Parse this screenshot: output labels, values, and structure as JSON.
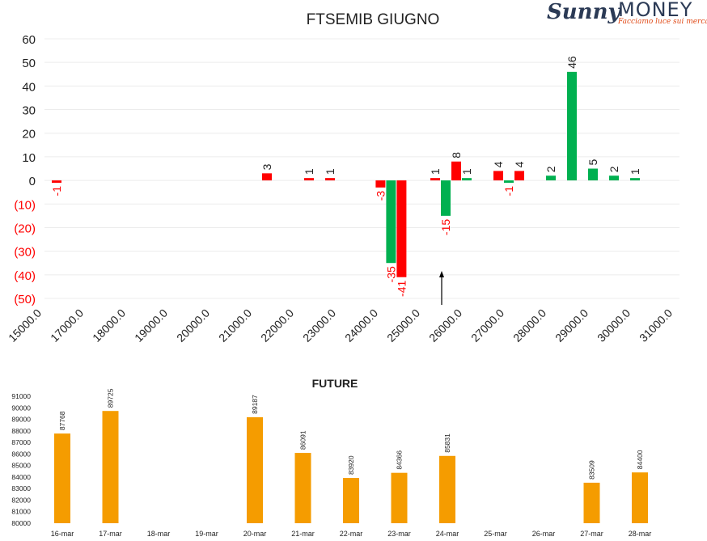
{
  "logo": {
    "brand_left": "Sunny",
    "brand_right": "MONEY",
    "tagline": "Facciamo luce sui mercati"
  },
  "colors": {
    "green": "#00b050",
    "red": "#ff0000",
    "orange": "#f59c00",
    "text": "#222222",
    "negtext": "#ff0000"
  },
  "chart_data": [
    {
      "type": "bar",
      "title": "FTSEMIB GIUGNO",
      "categories": [
        "15000.0",
        "17000.0",
        "18000.0",
        "19000.0",
        "20000.0",
        "21000.0",
        "22000.0",
        "23000.0",
        "24000.0",
        "25000.0",
        "26000.0",
        "27000.0",
        "28000.0",
        "29000.0",
        "30000.0",
        "31000.0"
      ],
      "ytick_labels": [
        "60",
        "50",
        "40",
        "30",
        "20",
        "10",
        "0",
        "(10)",
        "(20)",
        "(30)",
        "(40)",
        "(50)"
      ],
      "ytick_values": [
        60,
        50,
        40,
        30,
        20,
        10,
        0,
        -10,
        -20,
        -30,
        -40,
        -50
      ],
      "ylim": [
        -50,
        60
      ],
      "grid": true,
      "legend": "none",
      "annotation": "arrow pointing up near 25000-26000",
      "bars": [
        {
          "x": 15000,
          "value": -1,
          "color": "red",
          "label": "-1"
        },
        {
          "x": 20000,
          "value": 3,
          "color": "red",
          "label": "3"
        },
        {
          "x": 21000,
          "value": 1,
          "color": "red",
          "label": "1"
        },
        {
          "x": 21500,
          "value": 1,
          "color": "red",
          "label": "1"
        },
        {
          "x": 22700,
          "value": -3,
          "color": "red",
          "label": "-3"
        },
        {
          "x": 22950,
          "value": -35,
          "color": "green",
          "label": "-35"
        },
        {
          "x": 23200,
          "value": -41,
          "color": "red",
          "label": "-41"
        },
        {
          "x": 24000,
          "value": 1,
          "color": "red",
          "label": "1"
        },
        {
          "x": 24250,
          "value": -15,
          "color": "green",
          "label": "-15"
        },
        {
          "x": 24500,
          "value": 8,
          "color": "red",
          "label": "8"
        },
        {
          "x": 24750,
          "value": 1,
          "color": "green",
          "label": "1"
        },
        {
          "x": 25500,
          "value": 4,
          "color": "red",
          "label": "4"
        },
        {
          "x": 25750,
          "value": -1,
          "color": "green",
          "label": "-1"
        },
        {
          "x": 26000,
          "value": 4,
          "color": "red",
          "label": "4"
        },
        {
          "x": 26750,
          "value": 2,
          "color": "green",
          "label": "2"
        },
        {
          "x": 27250,
          "value": 46,
          "color": "green",
          "label": "46"
        },
        {
          "x": 27750,
          "value": 5,
          "color": "green",
          "label": "5"
        },
        {
          "x": 28250,
          "value": 2,
          "color": "green",
          "label": "2"
        },
        {
          "x": 28750,
          "value": 1,
          "color": "green",
          "label": "1"
        }
      ]
    },
    {
      "type": "bar",
      "title": "FUTURE",
      "categories": [
        "16-mar",
        "17-mar",
        "18-mar",
        "19-mar",
        "20-mar",
        "21-mar",
        "22-mar",
        "23-mar",
        "24-mar",
        "25-mar",
        "26-mar",
        "27-mar",
        "28-mar"
      ],
      "values": [
        87768,
        89725,
        null,
        null,
        89187,
        86091,
        83920,
        84366,
        85831,
        null,
        null,
        83509,
        84400
      ],
      "ytick_values": [
        91000,
        90000,
        89000,
        88000,
        87000,
        86000,
        85000,
        84000,
        83000,
        82000,
        81000,
        80000
      ],
      "ylim": [
        80000,
        91000
      ],
      "grid": false,
      "legend": "none"
    }
  ]
}
